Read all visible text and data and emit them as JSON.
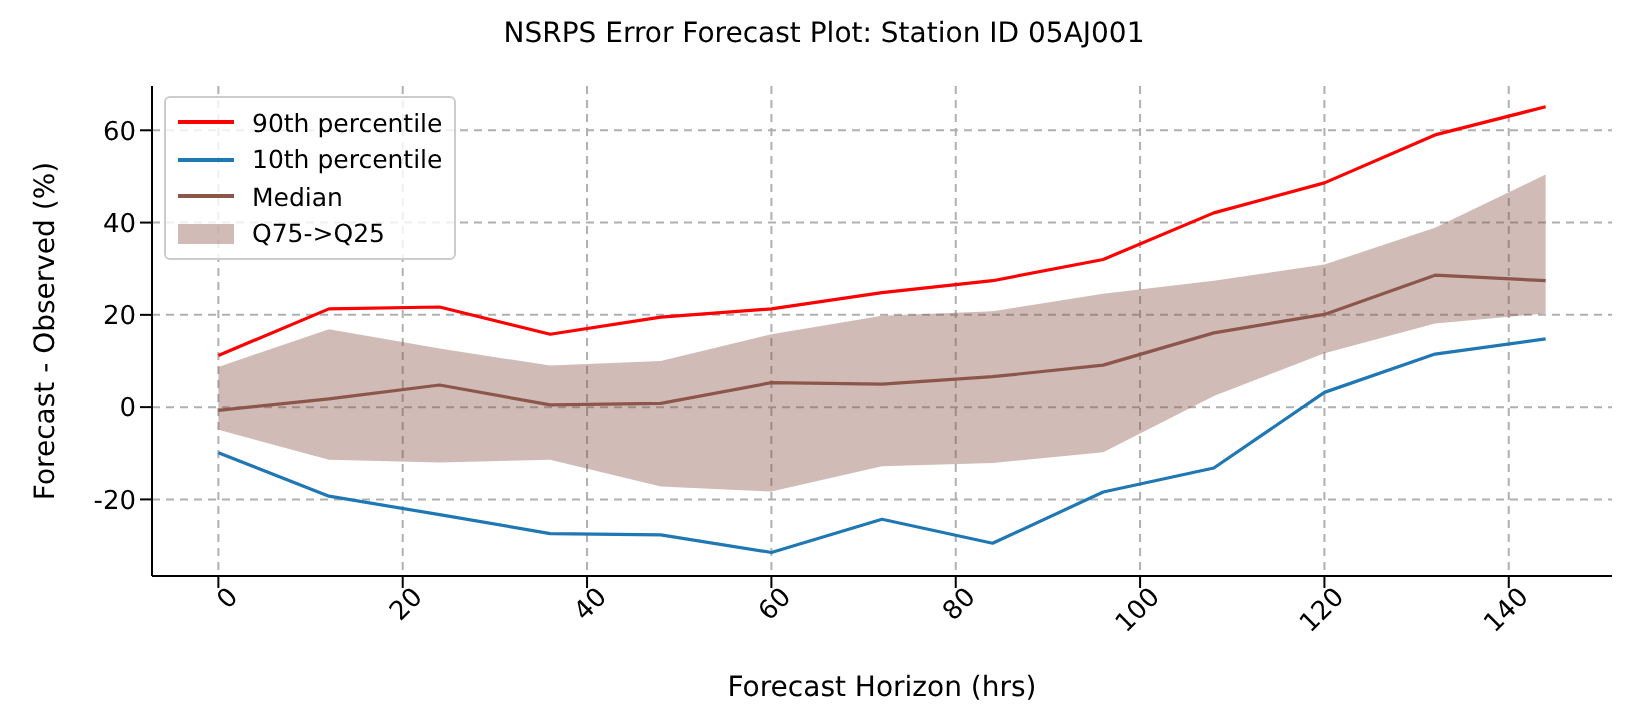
{
  "chart_data": {
    "type": "line",
    "title": "NSRPS Error Forecast Plot: Station ID 05AJ001",
    "xlabel": "Forecast Horizon (hrs)",
    "ylabel": "Forecast - Observed (%)",
    "x": [
      0,
      12,
      24,
      36,
      48,
      60,
      72,
      84,
      96,
      108,
      120,
      132,
      144
    ],
    "series": [
      {
        "name": "90th percentile",
        "color": "#ff0000",
        "values": [
          11.2,
          21.3,
          21.7,
          15.8,
          19.5,
          21.3,
          24.8,
          27.4,
          32.0,
          42.1,
          48.6,
          59.0,
          65.1
        ]
      },
      {
        "name": "10th percentile",
        "color": "#1f77b4",
        "values": [
          -9.9,
          -19.3,
          -23.3,
          -27.4,
          -27.7,
          -31.5,
          -24.3,
          -29.5,
          -18.4,
          -13.2,
          3.2,
          11.5,
          14.8
        ]
      },
      {
        "name": "Median",
        "color": "#8c564b",
        "values": [
          -0.7,
          1.8,
          4.8,
          0.5,
          0.8,
          5.3,
          5.0,
          6.6,
          9.1,
          16.1,
          20.1,
          28.6,
          27.4
        ],
        "lower": [
          -4.9,
          -11.4,
          -12.0,
          -11.4,
          -17.2,
          -18.3,
          -12.8,
          -12.1,
          -9.8,
          2.4,
          11.7,
          18.1,
          20.3
        ],
        "upper": [
          8.7,
          16.9,
          12.7,
          9.0,
          10.0,
          15.8,
          19.8,
          20.8,
          24.6,
          27.4,
          30.9,
          38.9,
          50.4
        ]
      }
    ],
    "annotations": [
      "Q75->Q25"
    ],
    "xlim": [
      -7.2,
      151.2
    ],
    "xticks": [
      0,
      20,
      40,
      60,
      80,
      100,
      120,
      140
    ],
    "ylim": [
      -36.6,
      69.6
    ],
    "yticks": [
      -20,
      0,
      20,
      40,
      60
    ],
    "grid": true,
    "legend": "top left",
    "marker": "none",
    "line_style": "solid"
  }
}
